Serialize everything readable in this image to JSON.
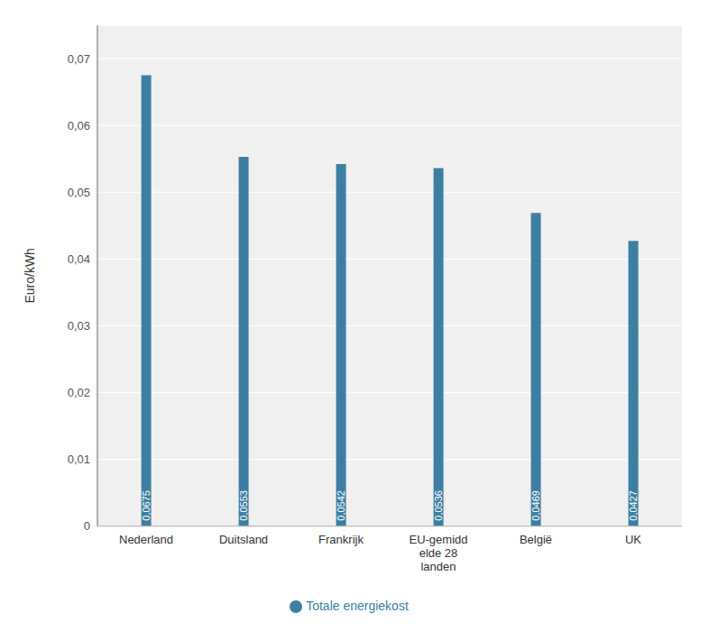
{
  "chart_data": {
    "type": "bar",
    "categories": [
      "Nederland",
      "Duitsland",
      "Frankrijk",
      "EU-gemidd\nelde 28\nlanden",
      "België",
      "UK"
    ],
    "series": [
      {
        "name": "Totale energiekost",
        "color": "#3d7fa3",
        "values": [
          0.0675,
          0.0553,
          0.0542,
          0.0536,
          0.0469,
          0.0427
        ],
        "value_labels": [
          "0,0675",
          "0,0553",
          "0,0542",
          "0,0536",
          "0,0469",
          "0,0427"
        ]
      }
    ],
    "ylabel": "Euro/kWh",
    "ylim": [
      0,
      0.075
    ],
    "yticks": [
      0,
      {
        "value": 0.01,
        "label": "0,01"
      },
      {
        "value": 0.02,
        "label": "0,02"
      },
      {
        "value": 0.03,
        "label": "0,03"
      },
      {
        "value": 0.04,
        "label": "0,04"
      },
      {
        "value": 0.05,
        "label": "0,05"
      },
      {
        "value": 0.06,
        "label": "0,06"
      },
      {
        "value": 0.07,
        "label": "0,07"
      }
    ],
    "grid": true,
    "legend": "bottom",
    "data_labels": true
  }
}
